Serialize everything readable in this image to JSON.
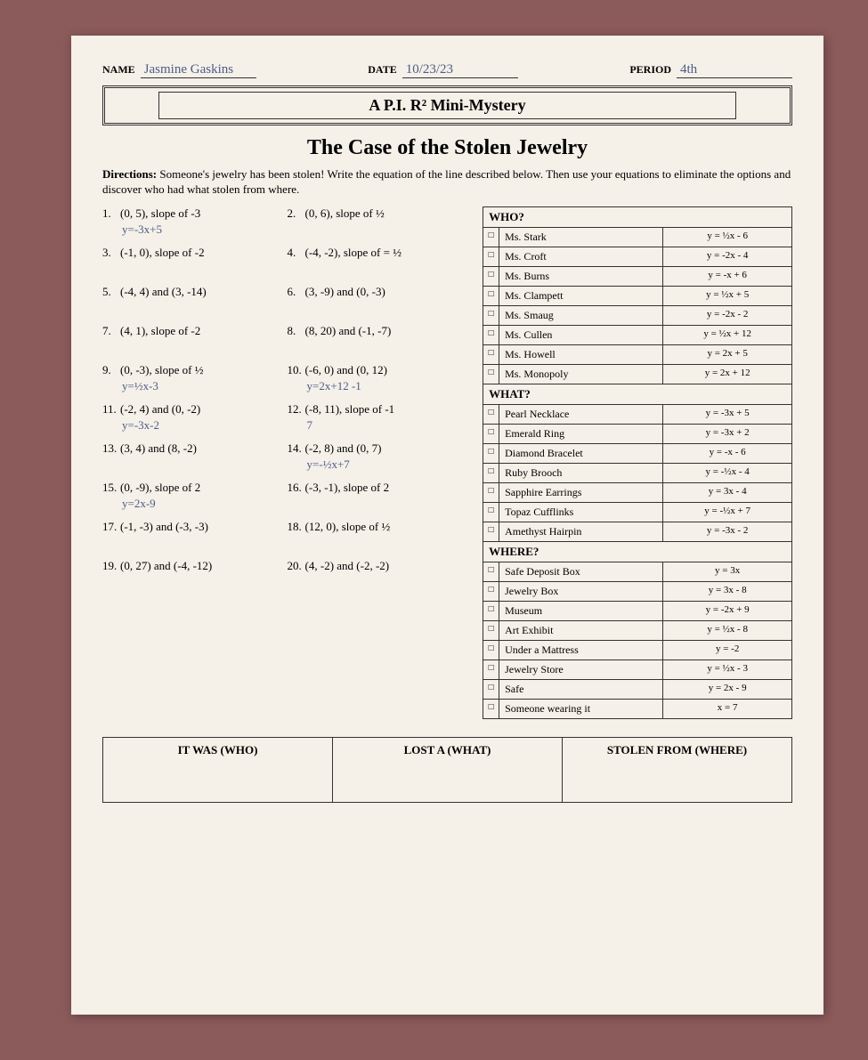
{
  "header": {
    "name_label": "NAME",
    "name_value": "Jasmine Gaskins",
    "date_label": "DATE",
    "date_value": "10/23/23",
    "period_label": "PERIOD",
    "period_value": "4th"
  },
  "banner": "A P.I. R² Mini-Mystery",
  "title": "The Case of the Stolen Jewelry",
  "directions_label": "Directions:",
  "directions_text": "Someone's jewelry has been stolen! Write the equation of the line described below. Then use your equations to eliminate the options and discover who had what stolen from where.",
  "problems": [
    [
      {
        "n": "1.",
        "t": "(0, 5), slope of -3",
        "w": "y=-3x+5"
      },
      {
        "n": "2.",
        "t": "(0, 6), slope of ½",
        "w": ""
      }
    ],
    [
      {
        "n": "3.",
        "t": "(-1, 0), slope of -2",
        "w": ""
      },
      {
        "n": "4.",
        "t": "(-4, -2), slope of = ½",
        "w": ""
      }
    ],
    [
      {
        "n": "5.",
        "t": "(-4, 4) and (3, -14)",
        "w": ""
      },
      {
        "n": "6.",
        "t": "(3, -9) and (0, -3)",
        "w": ""
      }
    ],
    [
      {
        "n": "7.",
        "t": "(4, 1), slope of -2",
        "w": ""
      },
      {
        "n": "8.",
        "t": "(8, 20) and (-1, -7)",
        "w": ""
      }
    ],
    [
      {
        "n": "9.",
        "t": "(0, -3), slope of ½",
        "w": "y=½x-3"
      },
      {
        "n": "10.",
        "t": "(-6, 0) and (0, 12)",
        "w": "y=2x+12    -1"
      }
    ],
    [
      {
        "n": "11.",
        "t": "(-2, 4) and (0, -2)",
        "w": "y=-3x-2"
      },
      {
        "n": "12.",
        "t": "(-8, 11), slope of -1",
        "w": "7"
      }
    ],
    [
      {
        "n": "13.",
        "t": "(3, 4) and (8, -2)",
        "w": ""
      },
      {
        "n": "14.",
        "t": "(-2, 8) and (0, 7)",
        "w": "y=-½x+7"
      }
    ],
    [
      {
        "n": "15.",
        "t": "(0, -9), slope of 2",
        "w": "y=2x-9"
      },
      {
        "n": "16.",
        "t": "(-3, -1), slope of 2",
        "w": ""
      }
    ],
    [
      {
        "n": "17.",
        "t": "(-1, -3) and (-3, -3)",
        "w": ""
      },
      {
        "n": "18.",
        "t": "(12, 0), slope of ½",
        "w": ""
      }
    ],
    [
      {
        "n": "19.",
        "t": "(0, 27) and (-4, -12)",
        "w": ""
      },
      {
        "n": "20.",
        "t": "(4, -2) and (-2, -2)",
        "w": ""
      }
    ]
  ],
  "sections": [
    {
      "head": "WHO?",
      "rows": [
        {
          "label": "Ms. Stark",
          "eq": "y = ½x - 6"
        },
        {
          "label": "Ms. Croft",
          "eq": "y = -2x - 4"
        },
        {
          "label": "Ms. Burns",
          "eq": "y = -x + 6"
        },
        {
          "label": "Ms. Clampett",
          "eq": "y = ½x + 5"
        },
        {
          "label": "Ms. Smaug",
          "eq": "y = -2x - 2"
        },
        {
          "label": "Ms. Cullen",
          "eq": "y = ½x + 12"
        },
        {
          "label": "Ms. Howell",
          "eq": "y = 2x + 5"
        },
        {
          "label": "Ms. Monopoly",
          "eq": "y = 2x + 12"
        }
      ]
    },
    {
      "head": "WHAT?",
      "rows": [
        {
          "label": "Pearl Necklace",
          "eq": "y = -3x + 5"
        },
        {
          "label": "Emerald Ring",
          "eq": "y = -3x + 2"
        },
        {
          "label": "Diamond Bracelet",
          "eq": "y = -x - 6"
        },
        {
          "label": "Ruby Brooch",
          "eq": "y = -½x - 4"
        },
        {
          "label": "Sapphire Earrings",
          "eq": "y = 3x - 4"
        },
        {
          "label": "Topaz Cufflinks",
          "eq": "y = -½x + 7"
        },
        {
          "label": "Amethyst Hairpin",
          "eq": "y = -3x - 2"
        }
      ]
    },
    {
      "head": "WHERE?",
      "rows": [
        {
          "label": "Safe Deposit Box",
          "eq": "y = 3x"
        },
        {
          "label": "Jewelry Box",
          "eq": "y = 3x - 8"
        },
        {
          "label": "Museum",
          "eq": "y = -2x + 9"
        },
        {
          "label": "Art Exhibit",
          "eq": "y = ½x - 8"
        },
        {
          "label": "Under a Mattress",
          "eq": "y = -2"
        },
        {
          "label": "Jewelry Store",
          "eq": "y = ½x - 3"
        },
        {
          "label": "Safe",
          "eq": "y = 2x - 9"
        },
        {
          "label": "Someone wearing it",
          "eq": "x = 7"
        }
      ]
    }
  ],
  "final": {
    "who": "IT WAS (WHO)",
    "what": "LOST A (WHAT)",
    "where": "STOLEN FROM (WHERE)"
  }
}
